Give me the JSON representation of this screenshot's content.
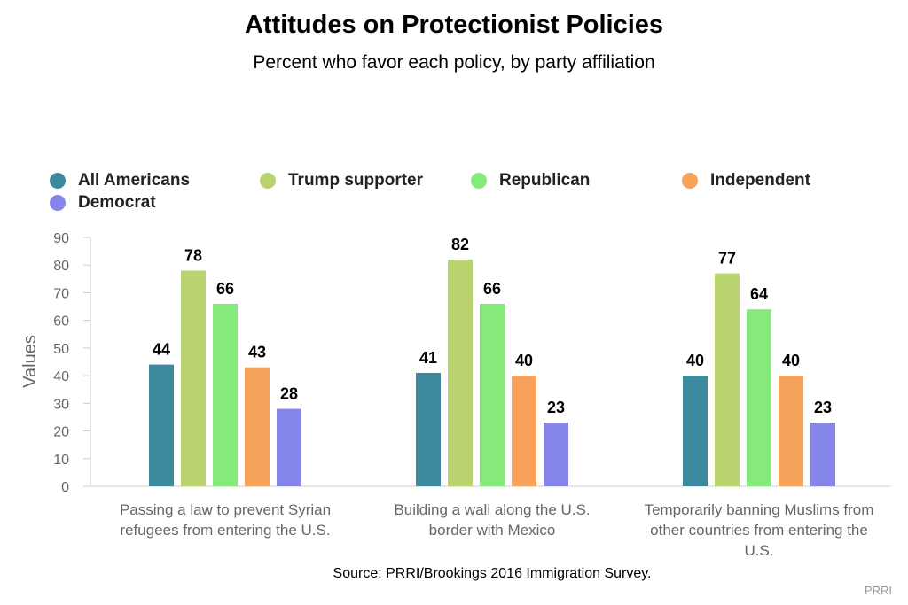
{
  "chart_data": {
    "type": "bar",
    "title": "Attitudes on Protectionist Policies",
    "subtitle": "Percent who favor each policy, by party affiliation",
    "ylabel": "Values",
    "xlabel": "",
    "ylim": [
      0,
      90
    ],
    "yticks": [
      0,
      10,
      20,
      30,
      40,
      50,
      60,
      70,
      80,
      90
    ],
    "grid": false,
    "legend_position": "top",
    "categories": [
      "Passing a law to prevent Syrian refugees from entering the U.S.",
      "Building a wall along the U.S. border with Mexico",
      "Temporarily banning Muslims from other countries from entering the U.S."
    ],
    "series": [
      {
        "name": "All Americans",
        "color": "#3d8a9e",
        "values": [
          44,
          41,
          40
        ]
      },
      {
        "name": "Trump supporter",
        "color": "#b9d36e",
        "values": [
          78,
          82,
          77
        ]
      },
      {
        "name": "Republican",
        "color": "#86e97b",
        "values": [
          66,
          66,
          64
        ]
      },
      {
        "name": "Independent",
        "color": "#f6a25a",
        "values": [
          43,
          40,
          40
        ]
      },
      {
        "name": "Democrat",
        "color": "#8585ea",
        "values": [
          28,
          23,
          23
        ]
      }
    ],
    "source": "Source: PRRI/Brookings 2016 Immigration Survey.",
    "credit": "PRRI"
  }
}
